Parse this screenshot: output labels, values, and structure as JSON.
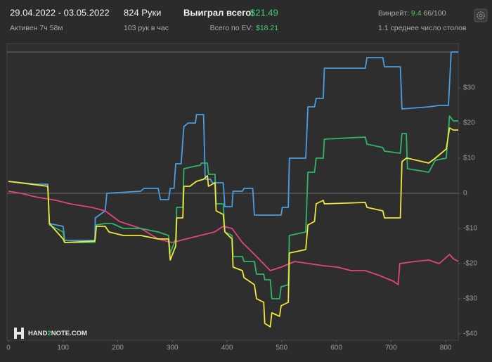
{
  "header": {
    "period": "29.04.2022 - 03.05.2022",
    "active": "Активен 7ч 58м",
    "hands": "824 Руки",
    "hands_per_hour": "103 рук в час",
    "won_label": "Выиграл всего:",
    "won_value": "$21.49",
    "ev_label": "Всего по EV:",
    "ev_value": "$18.21",
    "winrate_label": "Винрейт:",
    "winrate_value": "9.4",
    "winrate_unit": "66/100",
    "tables": "1.1 среднее число столов"
  },
  "logo": {
    "prefix": "HAND",
    "accent": "2",
    "suffix": "NOTE.COM"
  },
  "chart_data": {
    "type": "line",
    "xlim": [
      0,
      823
    ],
    "ylim": [
      -41.8,
      42.6
    ],
    "xticks": [
      0,
      100,
      200,
      300,
      400,
      500,
      600,
      700,
      800
    ],
    "yticks": [
      {
        "value": 30,
        "label": "$30"
      },
      {
        "value": 20,
        "label": "$20"
      },
      {
        "value": 10,
        "label": "$10"
      },
      0,
      {
        "value": -10,
        "label": "-$10"
      },
      {
        "value": -20,
        "label": "-$20"
      },
      {
        "value": -30,
        "label": "-$30"
      },
      {
        "value": -40,
        "label": "-$40"
      }
    ],
    "hlines": [
      0,
      40.2
    ],
    "series": [
      {
        "color": "#4a9ee0",
        "x": [
          0,
          49,
          72,
          75,
          100,
          103,
          158,
          159,
          177,
          180,
          242,
          248,
          274,
          278,
          293,
          296,
          303,
          306,
          316,
          321,
          329,
          342,
          344,
          357,
          360,
          370,
          373,
          393,
          396,
          409,
          411,
          428,
          431,
          447,
          450,
          499,
          501,
          512,
          514,
          544,
          548,
          560,
          563,
          576,
          578,
          653,
          656,
          685,
          688,
          717,
          720,
          769,
          788,
          805,
          810,
          823
        ],
        "values": [
          3.4,
          2.6,
          2.6,
          -8.6,
          -9.4,
          -13.4,
          -13.4,
          -7,
          -5,
          0,
          0.6,
          1.4,
          1.4,
          -1.8,
          -1.8,
          1.4,
          1.4,
          8.4,
          8.4,
          19,
          20,
          20,
          22.4,
          22.4,
          4,
          4,
          3,
          3,
          -3.8,
          -3.8,
          0.6,
          0.6,
          1.4,
          1.4,
          -6.2,
          -6.2,
          -4,
          -4,
          10,
          10,
          24.6,
          24.6,
          27,
          27,
          35.6,
          35.6,
          38.6,
          38.6,
          36,
          36,
          24,
          24.6,
          25,
          25,
          40.2,
          40.2
        ]
      },
      {
        "color": "#e0457b",
        "x": [
          0,
          23,
          49,
          87,
          113,
          152,
          177,
          203,
          242,
          274,
          299,
          325,
          351,
          377,
          393,
          409,
          428,
          454,
          479,
          499,
          524,
          550,
          576,
          602,
          627,
          653,
          679,
          704,
          713,
          716,
          743,
          769,
          788,
          807,
          814,
          823
        ],
        "values": [
          0.6,
          0,
          -1,
          -2,
          -3,
          -4,
          -5,
          -8,
          -10,
          -13,
          -14,
          -13,
          -12,
          -11,
          -9.4,
          -10,
          -14,
          -18,
          -22,
          -21,
          -19.4,
          -20,
          -20.6,
          -21,
          -22,
          -22,
          -23.4,
          -25,
          -26,
          -20,
          -19.4,
          -19,
          -20,
          -17.4,
          -18.6,
          -19.4
        ]
      },
      {
        "color": "#2db56a",
        "x": [
          0,
          72,
          75,
          100,
          103,
          158,
          161,
          177,
          190,
          210,
          242,
          274,
          293,
          296,
          306,
          308,
          319,
          321,
          332,
          351,
          353,
          364,
          366,
          378,
          380,
          393,
          396,
          409,
          411,
          428,
          431,
          450,
          454,
          467,
          469,
          479,
          482,
          496,
          499,
          512,
          514,
          544,
          548,
          560,
          563,
          576,
          578,
          653,
          656,
          685,
          688,
          717,
          720,
          728,
          730,
          769,
          781,
          801,
          807,
          814,
          823
        ],
        "values": [
          3.4,
          2,
          -9,
          -11,
          -14,
          -14,
          -9,
          -8.6,
          -8.6,
          -10,
          -10,
          -11,
          -12,
          -17,
          -13,
          -4,
          -4,
          7,
          7.4,
          8,
          8.6,
          8.6,
          5.4,
          5.4,
          -3,
          -3,
          -11,
          -12,
          -18,
          -18,
          -19.4,
          -19.4,
          -23,
          -23,
          -24.6,
          -24.6,
          -30,
          -30,
          -26.6,
          -26,
          -12,
          -11,
          6,
          6,
          10,
          10,
          15.4,
          16,
          14,
          13,
          12,
          11.4,
          17,
          17,
          7,
          6,
          9.4,
          10,
          22,
          20.6,
          20.6
        ]
      },
      {
        "color": "#f0e63c",
        "x": [
          0,
          72,
          75,
          100,
          103,
          158,
          161,
          177,
          184,
          210,
          242,
          274,
          293,
          296,
          306,
          308,
          319,
          321,
          332,
          344,
          357,
          364,
          366,
          378,
          380,
          393,
          396,
          409,
          411,
          428,
          431,
          450,
          454,
          467,
          469,
          479,
          482,
          496,
          499,
          512,
          514,
          544,
          548,
          560,
          563,
          576,
          578,
          653,
          656,
          685,
          688,
          717,
          720,
          728,
          730,
          769,
          781,
          801,
          807,
          814,
          823
        ],
        "values": [
          3.4,
          2,
          -8.6,
          -13,
          -14,
          -13.6,
          -9.4,
          -9.4,
          -11,
          -12,
          -12,
          -13,
          -13,
          -19,
          -15,
          -7,
          -7,
          2,
          2,
          3.4,
          4,
          5,
          2,
          3,
          -5,
          -6,
          -11,
          -13,
          -21,
          -22,
          -24,
          -26,
          -30,
          -31,
          -37,
          -38,
          -34,
          -35,
          -32,
          -31,
          -17,
          -16,
          -9,
          -8,
          -3,
          -2,
          -3,
          -2.6,
          -4,
          -5,
          -7,
          -7,
          9,
          10,
          10,
          8.6,
          10,
          12.6,
          18.6,
          18,
          18
        ]
      }
    ]
  }
}
